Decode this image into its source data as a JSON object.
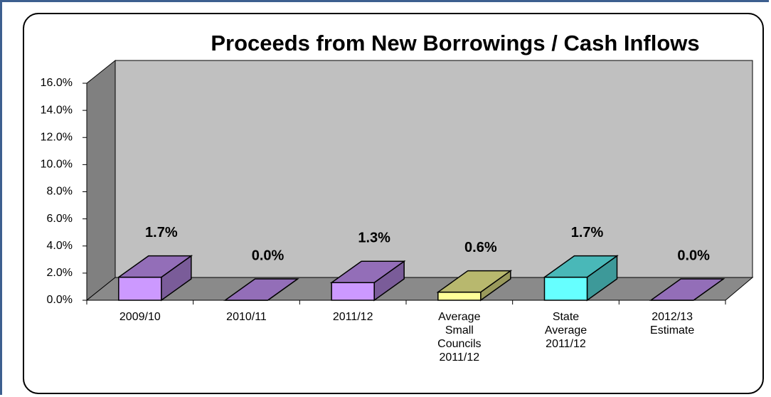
{
  "chart_data": {
    "type": "bar3d",
    "title": "Proceeds from New Borrowings / Cash Inflows",
    "categories": [
      "2009/10",
      "2010/11",
      "2011/12",
      "Average Small Councils 2011/12",
      "State Average 2011/12",
      "2012/13 Estimate"
    ],
    "values": [
      1.7,
      0.0,
      1.3,
      0.6,
      1.7,
      0.0
    ],
    "value_labels": [
      "1.7%",
      "0.0%",
      "1.3%",
      "0.6%",
      "1.7%",
      "0.0%"
    ],
    "colors": [
      "#cc99ff",
      "#cc99ff",
      "#cc99ff",
      "#ffff99",
      "#66ffff",
      "#cc99ff"
    ],
    "ylim": [
      0,
      16
    ],
    "yticks": [
      {
        "value": 0,
        "label": "0.0%"
      },
      {
        "value": 2,
        "label": "2.0%"
      },
      {
        "value": 4,
        "label": "4.0%"
      },
      {
        "value": 6,
        "label": "6.0%"
      },
      {
        "value": 8,
        "label": "8.0%"
      },
      {
        "value": 10,
        "label": "10.0%"
      },
      {
        "value": 12,
        "label": "12.0%"
      },
      {
        "value": 14,
        "label": "14.0%"
      },
      {
        "value": 16,
        "label": "16.0%"
      }
    ]
  }
}
